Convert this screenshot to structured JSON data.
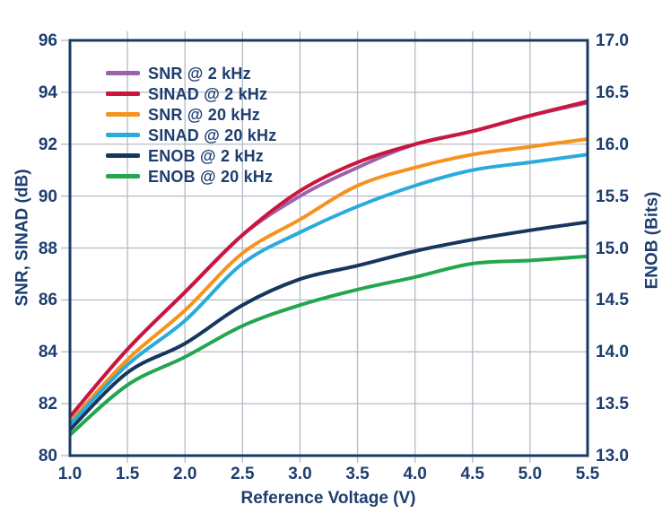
{
  "chart_data": {
    "type": "line",
    "title": "",
    "xlabel": "Reference Voltage (V)",
    "ylabel_left": "SNR, SINAD (dB)",
    "ylabel_right": "ENOB (Bits)",
    "x": [
      1.0,
      1.5,
      2.0,
      2.5,
      3.0,
      3.5,
      4.0,
      4.5,
      5.0,
      5.5
    ],
    "xlim": [
      1.0,
      5.5
    ],
    "ylim_left": [
      80,
      96
    ],
    "ylim_right": [
      13.0,
      17.0
    ],
    "x_tick_labels": [
      "1.0",
      "1.5",
      "2.0",
      "2.5",
      "3.0",
      "3.5",
      "4.0",
      "4.5",
      "5.0",
      "5.5"
    ],
    "y_left_tick_labels": [
      "96",
      "94",
      "92",
      "90",
      "88",
      "86",
      "84",
      "82",
      "80"
    ],
    "y_right_tick_labels": [
      "17.0",
      "16.5",
      "16.0",
      "15.5",
      "15.0",
      "14.5",
      "14.0",
      "13.5",
      "13.0"
    ],
    "grid": true,
    "legend_position": "top-left",
    "series": [
      {
        "name": "SNR @ 2 kHz",
        "color": "#9c62ab",
        "axis": "left",
        "unit": "dB",
        "values": [
          81.5,
          84.1,
          86.3,
          88.5,
          90.0,
          91.1,
          92.0,
          92.5,
          93.1,
          93.6
        ]
      },
      {
        "name": "SINAD @ 2 kHz",
        "color": "#c8163f",
        "axis": "left",
        "unit": "dB",
        "values": [
          81.5,
          84.1,
          86.3,
          88.5,
          90.2,
          91.3,
          92.0,
          92.5,
          93.1,
          93.65
        ]
      },
      {
        "name": "SNR @ 20 kHz",
        "color": "#f6921e",
        "axis": "left",
        "unit": "dB",
        "values": [
          81.3,
          83.7,
          85.6,
          87.8,
          89.1,
          90.4,
          91.1,
          91.6,
          91.9,
          92.2
        ]
      },
      {
        "name": "SINAD @ 20 kHz",
        "color": "#2aabdc",
        "axis": "left",
        "unit": "dB",
        "values": [
          81.2,
          83.5,
          85.2,
          87.4,
          88.6,
          89.6,
          90.4,
          91.0,
          91.3,
          91.6
        ]
      },
      {
        "name": "ENOB @ 2 kHz",
        "color": "#16365d",
        "axis": "right",
        "unit": "Bits",
        "values": [
          13.25,
          13.8,
          14.08,
          14.45,
          14.7,
          14.83,
          14.97,
          15.08,
          15.17,
          15.25
        ]
      },
      {
        "name": "ENOB @ 20 kHz",
        "color": "#23a64e",
        "axis": "right",
        "unit": "Bits",
        "values": [
          13.2,
          13.68,
          13.95,
          14.25,
          14.45,
          14.6,
          14.72,
          14.85,
          14.88,
          14.92
        ]
      }
    ]
  },
  "colors": {
    "axis_frame": "#1a3a66",
    "text": "#1d3e6f",
    "gridline": "#b6bac6",
    "background": "#ffffff"
  }
}
